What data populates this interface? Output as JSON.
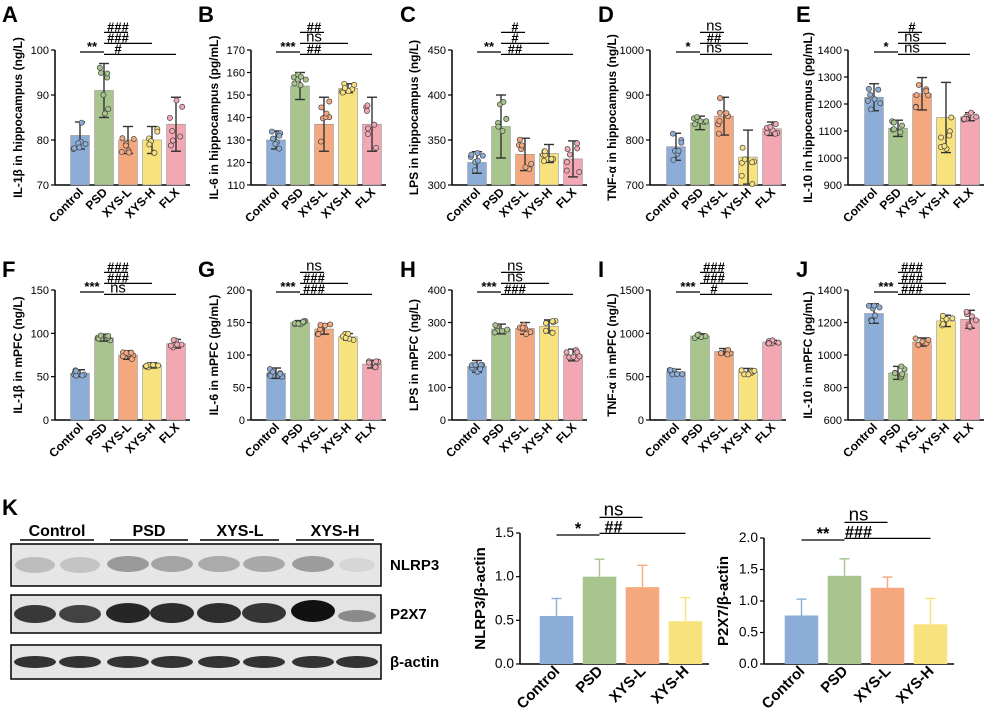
{
  "panel_letters": [
    "A",
    "B",
    "C",
    "D",
    "E",
    "F",
    "G",
    "H",
    "I",
    "J",
    "K"
  ],
  "colors": {
    "Control": "#8cadd7",
    "PSD": "#a7c58c",
    "XYS-L": "#f5a77e",
    "XYS-H": "#f8e27e",
    "FLX": "#f2a7b3"
  },
  "western_blot": {
    "groups": [
      "Control",
      "PSD",
      "XYS-L",
      "XYS-H"
    ],
    "bands": [
      "NLRP3",
      "P2X7",
      "β-actin"
    ]
  },
  "chart_data": [
    {
      "id": "A",
      "type": "bar",
      "categories": [
        "Control",
        "PSD",
        "XYS-L",
        "XYS-H",
        "FLX"
      ],
      "values": [
        81,
        91,
        80,
        80,
        83.5
      ],
      "errors": [
        3,
        6,
        3,
        3,
        6
      ],
      "ylabel": "IL-1β in hippocampus (ng/L)",
      "ylim": [
        70,
        100
      ],
      "yticks": [
        70,
        80,
        90,
        100
      ],
      "annotations": [
        {
          "a": 0,
          "b": 1,
          "text": "**"
        },
        {
          "a": 1,
          "b": 2,
          "text": "###"
        },
        {
          "a": 1,
          "b": 3,
          "text": "###"
        },
        {
          "a": 1,
          "b": 4,
          "text": "#"
        }
      ]
    },
    {
      "id": "B",
      "type": "bar",
      "categories": [
        "Control",
        "PSD",
        "XYS-L",
        "XYS-H",
        "FLX"
      ],
      "values": [
        130,
        154,
        137,
        153,
        137
      ],
      "errors": [
        4,
        6,
        12,
        2,
        12
      ],
      "ylabel": "IL-6 in hippocampus (pg/mL)",
      "ylim": [
        110,
        170
      ],
      "yticks": [
        110,
        120,
        130,
        140,
        150,
        160,
        170
      ],
      "annotations": [
        {
          "a": 0,
          "b": 1,
          "text": "***"
        },
        {
          "a": 1,
          "b": 2,
          "text": "##"
        },
        {
          "a": 1,
          "b": 3,
          "text": "ns"
        },
        {
          "a": 1,
          "b": 4,
          "text": "##"
        }
      ]
    },
    {
      "id": "C",
      "type": "bar",
      "categories": [
        "Control",
        "PSD",
        "XYS-L",
        "XYS-H",
        "FLX"
      ],
      "values": [
        325,
        365,
        334,
        335,
        329
      ],
      "errors": [
        12,
        35,
        18,
        10,
        20
      ],
      "ylabel": "LPS in hippocampus (ng/L)",
      "ylim": [
        300,
        450
      ],
      "yticks": [
        300,
        350,
        400,
        450
      ],
      "annotations": [
        {
          "a": 0,
          "b": 1,
          "text": "**"
        },
        {
          "a": 1,
          "b": 2,
          "text": "#"
        },
        {
          "a": 1,
          "b": 3,
          "text": "#"
        },
        {
          "a": 1,
          "b": 4,
          "text": "##"
        }
      ]
    },
    {
      "id": "D",
      "type": "bar",
      "categories": [
        "Control",
        "PSD",
        "XYS-L",
        "XYS-H",
        "FLX"
      ],
      "values": [
        785,
        838,
        853,
        762,
        825
      ],
      "errors": [
        30,
        15,
        42,
        60,
        15
      ],
      "ylabel": "TNF-α in hippocampus (ng/L)",
      "ylim": [
        700,
        1000
      ],
      "yticks": [
        700,
        800,
        900,
        1000
      ],
      "annotations": [
        {
          "a": 0,
          "b": 1,
          "text": "*"
        },
        {
          "a": 1,
          "b": 2,
          "text": "ns"
        },
        {
          "a": 1,
          "b": 3,
          "text": "##"
        },
        {
          "a": 1,
          "b": 4,
          "text": "ns"
        }
      ]
    },
    {
      "id": "E",
      "type": "bar",
      "categories": [
        "Control",
        "PSD",
        "XYS-L",
        "XYS-H",
        "FLX"
      ],
      "values": [
        1225,
        1110,
        1238,
        1150,
        1153
      ],
      "errors": [
        50,
        30,
        60,
        130,
        15
      ],
      "ylabel": "IL-10 in hippocampus (pg/mL)",
      "ylim": [
        900,
        1400
      ],
      "yticks": [
        900,
        1000,
        1100,
        1200,
        1300,
        1400
      ],
      "annotations": [
        {
          "a": 0,
          "b": 1,
          "text": "*"
        },
        {
          "a": 1,
          "b": 2,
          "text": "#"
        },
        {
          "a": 1,
          "b": 3,
          "text": "ns"
        },
        {
          "a": 1,
          "b": 4,
          "text": "ns"
        }
      ]
    },
    {
      "id": "F",
      "type": "bar",
      "categories": [
        "Control",
        "PSD",
        "XYS-L",
        "XYS-H",
        "FLX"
      ],
      "values": [
        54,
        95,
        75,
        63,
        88
      ],
      "errors": [
        4,
        4,
        5,
        3,
        5
      ],
      "ylabel": "IL-1β in mPFC (ng/L)",
      "ylim": [
        0,
        150
      ],
      "yticks": [
        0,
        50,
        100,
        150
      ],
      "annotations": [
        {
          "a": 0,
          "b": 1,
          "text": "***"
        },
        {
          "a": 1,
          "b": 2,
          "text": "###"
        },
        {
          "a": 1,
          "b": 3,
          "text": "###"
        },
        {
          "a": 1,
          "b": 4,
          "text": "ns"
        }
      ]
    },
    {
      "id": "G",
      "type": "bar",
      "categories": [
        "Control",
        "PSD",
        "XYS-L",
        "XYS-H",
        "FLX"
      ],
      "values": [
        72,
        150,
        140,
        128,
        86
      ],
      "errors": [
        8,
        3,
        8,
        5,
        6
      ],
      "ylabel": "IL-6 in mPFC (pg/mL)",
      "ylim": [
        0,
        200
      ],
      "yticks": [
        0,
        50,
        100,
        150,
        200
      ],
      "annotations": [
        {
          "a": 0,
          "b": 1,
          "text": "***"
        },
        {
          "a": 1,
          "b": 2,
          "text": "ns"
        },
        {
          "a": 1,
          "b": 3,
          "text": "###"
        },
        {
          "a": 1,
          "b": 4,
          "text": "###"
        }
      ]
    },
    {
      "id": "H",
      "type": "bar",
      "categories": [
        "Control",
        "PSD",
        "XYS-L",
        "XYS-H",
        "FLX"
      ],
      "values": [
        165,
        280,
        282,
        288,
        200
      ],
      "errors": [
        18,
        15,
        18,
        20,
        18
      ],
      "ylabel": "LPS in mPFC (ng/L)",
      "ylim": [
        0,
        400
      ],
      "yticks": [
        0,
        100,
        200,
        300,
        400
      ],
      "annotations": [
        {
          "a": 0,
          "b": 1,
          "text": "***"
        },
        {
          "a": 1,
          "b": 2,
          "text": "ns"
        },
        {
          "a": 1,
          "b": 3,
          "text": "ns"
        },
        {
          "a": 1,
          "b": 4,
          "text": "###"
        }
      ]
    },
    {
      "id": "I",
      "type": "bar",
      "categories": [
        "Control",
        "PSD",
        "XYS-L",
        "XYS-H",
        "FLX"
      ],
      "values": [
        555,
        970,
        790,
        560,
        900
      ],
      "errors": [
        30,
        25,
        35,
        35,
        20
      ],
      "ylabel": "TNF-α in mPFC (ng/L)",
      "ylim": [
        0,
        1500
      ],
      "yticks": [
        0,
        500,
        1000,
        1500
      ],
      "annotations": [
        {
          "a": 0,
          "b": 1,
          "text": "***"
        },
        {
          "a": 1,
          "b": 2,
          "text": "###"
        },
        {
          "a": 1,
          "b": 3,
          "text": "###"
        },
        {
          "a": 1,
          "b": 4,
          "text": "#"
        }
      ]
    },
    {
      "id": "J",
      "type": "bar",
      "categories": [
        "Control",
        "PSD",
        "XYS-L",
        "XYS-H",
        "FLX"
      ],
      "values": [
        1255,
        890,
        1080,
        1210,
        1220
      ],
      "errors": [
        60,
        40,
        25,
        35,
        55
      ],
      "ylabel": "IL-10 in mPFC (pg/mL)",
      "ylim": [
        600,
        1400
      ],
      "yticks": [
        600,
        800,
        1000,
        1200,
        1400
      ],
      "annotations": [
        {
          "a": 0,
          "b": 1,
          "text": "***"
        },
        {
          "a": 1,
          "b": 2,
          "text": "###"
        },
        {
          "a": 1,
          "b": 3,
          "text": "###"
        },
        {
          "a": 1,
          "b": 4,
          "text": "###"
        }
      ]
    },
    {
      "id": "K1",
      "type": "bar",
      "categories": [
        "Control",
        "PSD",
        "XYS-L",
        "XYS-H"
      ],
      "values": [
        0.55,
        1.0,
        0.88,
        0.49
      ],
      "errors": [
        0.2,
        0.2,
        0.25,
        0.27
      ],
      "ylabel": "NLRP3/β-actin",
      "ylim": [
        0,
        1.5
      ],
      "yticks": [
        "0.0",
        "0.5",
        "1.0",
        "1.5"
      ],
      "annotations": [
        {
          "a": 0,
          "b": 1,
          "text": "*"
        },
        {
          "a": 1,
          "b": 2,
          "text": "ns"
        },
        {
          "a": 1,
          "b": 3,
          "text": "##"
        }
      ]
    },
    {
      "id": "K2",
      "type": "bar",
      "categories": [
        "Control",
        "PSD",
        "XYS-L",
        "XYS-H"
      ],
      "values": [
        0.77,
        1.4,
        1.21,
        0.63
      ],
      "errors": [
        0.26,
        0.27,
        0.17,
        0.41
      ],
      "ylabel": "P2X7/β-actin",
      "ylim": [
        0,
        2.0
      ],
      "yticks": [
        "0.0",
        "0.5",
        "1.0",
        "1.5",
        "2.0"
      ],
      "annotations": [
        {
          "a": 0,
          "b": 1,
          "text": "**"
        },
        {
          "a": 1,
          "b": 2,
          "text": "ns"
        },
        {
          "a": 1,
          "b": 3,
          "text": "###"
        }
      ]
    }
  ]
}
